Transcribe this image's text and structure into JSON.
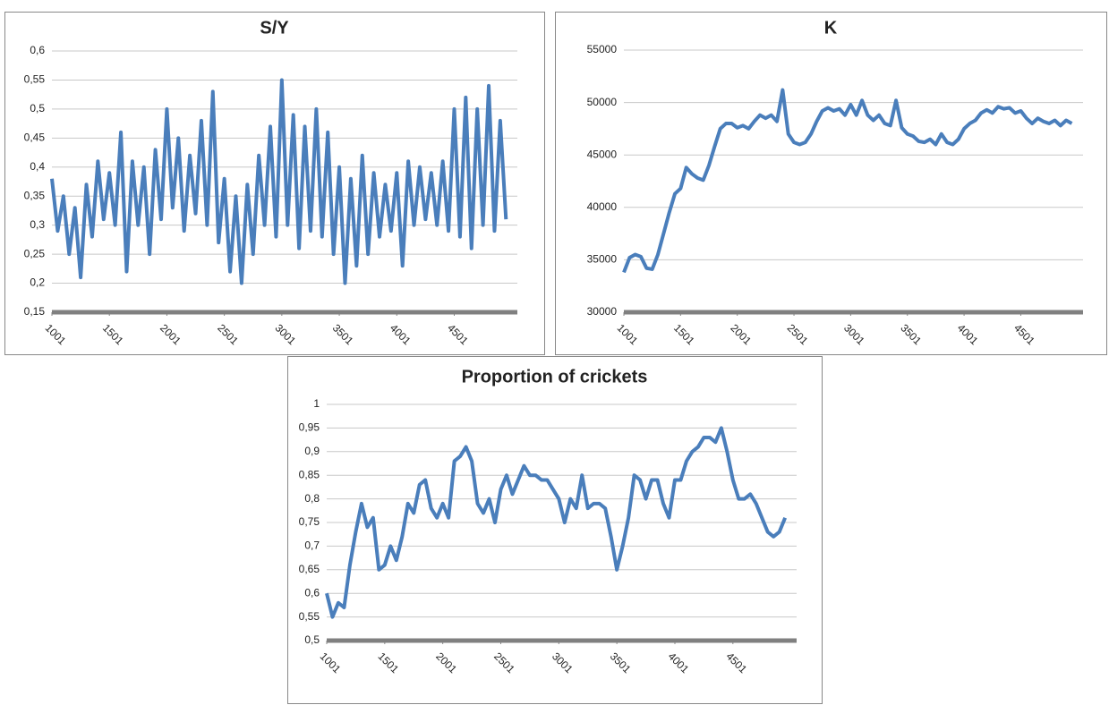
{
  "chart_data": [
    {
      "type": "line",
      "title": "S/Y",
      "color": "#4a7ebb",
      "grid": true,
      "x": [
        1001,
        1051,
        1101,
        1151,
        1201,
        1251,
        1301,
        1351,
        1401,
        1451,
        1501,
        1551,
        1601,
        1651,
        1701,
        1751,
        1801,
        1851,
        1901,
        1951,
        2001,
        2051,
        2101,
        2151,
        2201,
        2251,
        2301,
        2351,
        2401,
        2451,
        2501,
        2551,
        2601,
        2651,
        2701,
        2751,
        2801,
        2851,
        2901,
        2951,
        3001,
        3051,
        3101,
        3151,
        3201,
        3251,
        3301,
        3351,
        3401,
        3451,
        3501,
        3551,
        3601,
        3651,
        3701,
        3751,
        3801,
        3851,
        3901,
        3951,
        4001,
        4051,
        4101,
        4151,
        4201,
        4251,
        4301,
        4351,
        4401,
        4451,
        4501,
        4551,
        4601,
        4651,
        4701,
        4751,
        4801,
        4851,
        4901,
        4951
      ],
      "values": [
        0.38,
        0.29,
        0.35,
        0.25,
        0.33,
        0.21,
        0.37,
        0.28,
        0.41,
        0.31,
        0.39,
        0.3,
        0.46,
        0.22,
        0.41,
        0.3,
        0.4,
        0.25,
        0.43,
        0.31,
        0.5,
        0.33,
        0.45,
        0.29,
        0.42,
        0.32,
        0.48,
        0.3,
        0.53,
        0.27,
        0.38,
        0.22,
        0.35,
        0.2,
        0.37,
        0.25,
        0.42,
        0.3,
        0.47,
        0.28,
        0.55,
        0.3,
        0.49,
        0.26,
        0.47,
        0.29,
        0.5,
        0.28,
        0.46,
        0.25,
        0.4,
        0.2,
        0.38,
        0.23,
        0.42,
        0.25,
        0.39,
        0.28,
        0.37,
        0.29,
        0.39,
        0.23,
        0.41,
        0.3,
        0.4,
        0.31,
        0.39,
        0.3,
        0.41,
        0.29,
        0.5,
        0.28,
        0.52,
        0.26,
        0.5,
        0.3,
        0.54,
        0.29,
        0.48,
        0.31
      ],
      "xlim": [
        1001,
        5050
      ],
      "xticks": [
        1001,
        1501,
        2001,
        2501,
        3001,
        3501,
        4001,
        4501
      ],
      "ylim": [
        0.15,
        0.6
      ],
      "yticks": [
        {
          "value": 0.15,
          "label": "0,15"
        },
        {
          "value": 0.2,
          "label": "0,2"
        },
        {
          "value": 0.25,
          "label": "0,25"
        },
        {
          "value": 0.3,
          "label": "0,3"
        },
        {
          "value": 0.35,
          "label": "0,35"
        },
        {
          "value": 0.4,
          "label": "0,4"
        },
        {
          "value": 0.45,
          "label": "0,45"
        },
        {
          "value": 0.5,
          "label": "0,5"
        },
        {
          "value": 0.55,
          "label": "0,55"
        },
        {
          "value": 0.6,
          "label": "0,6"
        }
      ]
    },
    {
      "type": "line",
      "title": "K",
      "color": "#4a7ebb",
      "grid": true,
      "x": [
        1001,
        1051,
        1101,
        1151,
        1201,
        1251,
        1301,
        1351,
        1401,
        1451,
        1501,
        1551,
        1601,
        1651,
        1701,
        1751,
        1801,
        1851,
        1901,
        1951,
        2001,
        2051,
        2101,
        2151,
        2201,
        2251,
        2301,
        2351,
        2401,
        2451,
        2501,
        2551,
        2601,
        2651,
        2701,
        2751,
        2801,
        2851,
        2901,
        2951,
        3001,
        3051,
        3101,
        3151,
        3201,
        3251,
        3301,
        3351,
        3401,
        3451,
        3501,
        3551,
        3601,
        3651,
        3701,
        3751,
        3801,
        3851,
        3901,
        3951,
        4001,
        4051,
        4101,
        4151,
        4201,
        4251,
        4301,
        4351,
        4401,
        4451,
        4501,
        4551,
        4601,
        4651,
        4701,
        4751,
        4801,
        4851,
        4901,
        4951
      ],
      "values": [
        33800,
        35200,
        35500,
        35300,
        34200,
        34100,
        35500,
        37500,
        39500,
        41300,
        41800,
        43800,
        43200,
        42800,
        42600,
        44000,
        45800,
        47500,
        48000,
        48000,
        47600,
        47800,
        47500,
        48200,
        48800,
        48500,
        48800,
        48200,
        51200,
        47000,
        46200,
        46000,
        46200,
        47000,
        48200,
        49200,
        49500,
        49200,
        49400,
        48800,
        49800,
        48800,
        50200,
        48800,
        48300,
        48800,
        48000,
        47800,
        50200,
        47600,
        47000,
        46800,
        46300,
        46200,
        46500,
        46000,
        47000,
        46200,
        46000,
        46500,
        47500,
        48000,
        48300,
        49000,
        49300,
        49000,
        49600,
        49400,
        49500,
        49000,
        49200,
        48500,
        48000,
        48500,
        48200,
        48000,
        48300,
        47800,
        48300,
        48000
      ],
      "xlim": [
        1001,
        5050
      ],
      "xticks": [
        1001,
        1501,
        2001,
        2501,
        3001,
        3501,
        4001,
        4501
      ],
      "ylim": [
        30000,
        55000
      ],
      "yticks": [
        30000,
        35000,
        40000,
        45000,
        50000,
        55000
      ]
    },
    {
      "type": "line",
      "title": "Proportion of crickets",
      "color": "#4a7ebb",
      "grid": true,
      "x": [
        1001,
        1051,
        1101,
        1151,
        1201,
        1251,
        1301,
        1351,
        1401,
        1451,
        1501,
        1551,
        1601,
        1651,
        1701,
        1751,
        1801,
        1851,
        1901,
        1951,
        2001,
        2051,
        2101,
        2151,
        2201,
        2251,
        2301,
        2351,
        2401,
        2451,
        2501,
        2551,
        2601,
        2651,
        2701,
        2751,
        2801,
        2851,
        2901,
        2951,
        3001,
        3051,
        3101,
        3151,
        3201,
        3251,
        3301,
        3351,
        3401,
        3451,
        3501,
        3551,
        3601,
        3651,
        3701,
        3751,
        3801,
        3851,
        3901,
        3951,
        4001,
        4051,
        4101,
        4151,
        4201,
        4251,
        4301,
        4351,
        4401,
        4451,
        4501,
        4551,
        4601,
        4651,
        4701,
        4751,
        4801,
        4851,
        4901,
        4951
      ],
      "values": [
        0.6,
        0.55,
        0.58,
        0.57,
        0.66,
        0.73,
        0.79,
        0.74,
        0.76,
        0.65,
        0.66,
        0.7,
        0.67,
        0.72,
        0.79,
        0.77,
        0.83,
        0.84,
        0.78,
        0.76,
        0.79,
        0.76,
        0.88,
        0.89,
        0.91,
        0.88,
        0.79,
        0.77,
        0.8,
        0.75,
        0.82,
        0.85,
        0.81,
        0.84,
        0.87,
        0.85,
        0.85,
        0.84,
        0.84,
        0.82,
        0.8,
        0.75,
        0.8,
        0.78,
        0.85,
        0.78,
        0.79,
        0.79,
        0.78,
        0.72,
        0.65,
        0.7,
        0.76,
        0.85,
        0.84,
        0.8,
        0.84,
        0.84,
        0.79,
        0.76,
        0.84,
        0.84,
        0.88,
        0.9,
        0.91,
        0.93,
        0.93,
        0.92,
        0.95,
        0.9,
        0.84,
        0.8,
        0.8,
        0.81,
        0.79,
        0.76,
        0.73,
        0.72,
        0.73,
        0.76
      ],
      "xlim": [
        1001,
        5050
      ],
      "xticks": [
        1001,
        1501,
        2001,
        2501,
        3001,
        3501,
        4001,
        4501
      ],
      "ylim": [
        0.5,
        1
      ],
      "yticks": [
        {
          "value": 0.5,
          "label": "0,5"
        },
        {
          "value": 0.55,
          "label": "0,55"
        },
        {
          "value": 0.6,
          "label": "0,6"
        },
        {
          "value": 0.65,
          "label": "0,65"
        },
        {
          "value": 0.7,
          "label": "0,7"
        },
        {
          "value": 0.75,
          "label": "0,75"
        },
        {
          "value": 0.8,
          "label": "0,8"
        },
        {
          "value": 0.85,
          "label": "0,85"
        },
        {
          "value": 0.9,
          "label": "0,9"
        },
        {
          "value": 0.95,
          "label": "0,95"
        },
        {
          "value": 1,
          "label": "1"
        }
      ]
    }
  ]
}
